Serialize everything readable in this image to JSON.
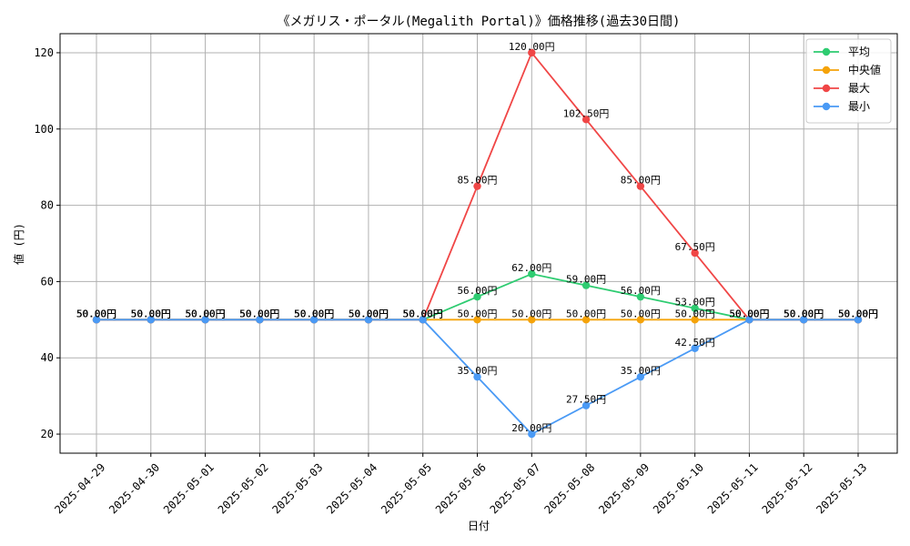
{
  "chart_data": {
    "type": "line",
    "title": "《メガリス・ポータル(Megalith Portal)》価格推移(過去30日間)",
    "xlabel": "日付",
    "ylabel": "値 (円)",
    "ylim": [
      15,
      125
    ],
    "yticks": [
      20,
      40,
      60,
      80,
      100,
      120
    ],
    "grid": true,
    "legend_position": "top-right",
    "categories": [
      "2025-04-29",
      "2025-04-30",
      "2025-05-01",
      "2025-05-02",
      "2025-05-03",
      "2025-05-04",
      "2025-05-05",
      "2025-05-06",
      "2025-05-07",
      "2025-05-08",
      "2025-05-09",
      "2025-05-10",
      "2025-05-11",
      "2025-05-12",
      "2025-05-13"
    ],
    "series": [
      {
        "name": "平均",
        "color": "#2ecc71",
        "values": [
          50,
          50,
          50,
          50,
          50,
          50,
          50,
          56,
          62,
          59,
          56,
          53,
          50,
          50,
          50
        ],
        "labels": [
          "50.00円",
          "50.00円",
          "50.00円",
          "50.00円",
          "50.00円",
          "50.00円",
          "50.00円",
          "56.00円",
          "62.00円",
          "59.00円",
          "56.00円",
          "53.00円",
          "50.00円",
          "50.00円",
          "50.00円"
        ]
      },
      {
        "name": "中央値",
        "color": "#f5a30a",
        "values": [
          50,
          50,
          50,
          50,
          50,
          50,
          50,
          50,
          50,
          50,
          50,
          50,
          50,
          50,
          50
        ],
        "labels": [
          "50.00円",
          "50.00円",
          "50.00円",
          "50.00円",
          "50.00円",
          "50.00円",
          "50.00円",
          "50.00円",
          "50.00円",
          "50.00円",
          "50.00円",
          "50.00円",
          "50.00円",
          "50.00円",
          "50.00円"
        ]
      },
      {
        "name": "最大",
        "color": "#f04646",
        "values": [
          50,
          50,
          50,
          50,
          50,
          50,
          50,
          85,
          120,
          102.5,
          85,
          67.5,
          50,
          50,
          50
        ],
        "labels": [
          "50.00円",
          "50.00円",
          "50.00円",
          "50.00円",
          "50.00円",
          "50.00円",
          "50.00円",
          "85.00円",
          "120.00円",
          "102.50円",
          "85.00円",
          "67.50円",
          "50.00円",
          "50.00円",
          "50.00円"
        ]
      },
      {
        "name": "最小",
        "color": "#4a9af5",
        "values": [
          50,
          50,
          50,
          50,
          50,
          50,
          50,
          35,
          20,
          27.5,
          35,
          42.5,
          50,
          50,
          50
        ],
        "labels": [
          "50.00円",
          "50.00円",
          "50.00円",
          "50.00円",
          "50.00円",
          "50.00円",
          "50.00円",
          "35.00円",
          "20.00円",
          "27.50円",
          "35.00円",
          "42.50円",
          "50.00円",
          "50.00円",
          "50.00円"
        ]
      }
    ]
  }
}
